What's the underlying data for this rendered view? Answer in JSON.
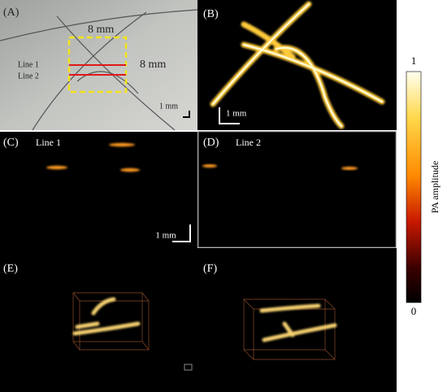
{
  "panels": {
    "a": {
      "label": "(A)",
      "width_annotation": "8 mm",
      "height_annotation": "8 mm",
      "line1": "Line 1",
      "line2": "Line 2",
      "scale": "1 mm"
    },
    "b": {
      "label": "(B)",
      "scale": "1 mm"
    },
    "c": {
      "label": "(C)",
      "title": "Line 1",
      "scale": "1 mm"
    },
    "d": {
      "label": "(D)",
      "title": "Line 2"
    },
    "e": {
      "label": "(E)"
    },
    "f": {
      "label": "(F)"
    }
  },
  "colorbar": {
    "title": "PA amplitude",
    "max_label": "1",
    "min_label": "0"
  }
}
